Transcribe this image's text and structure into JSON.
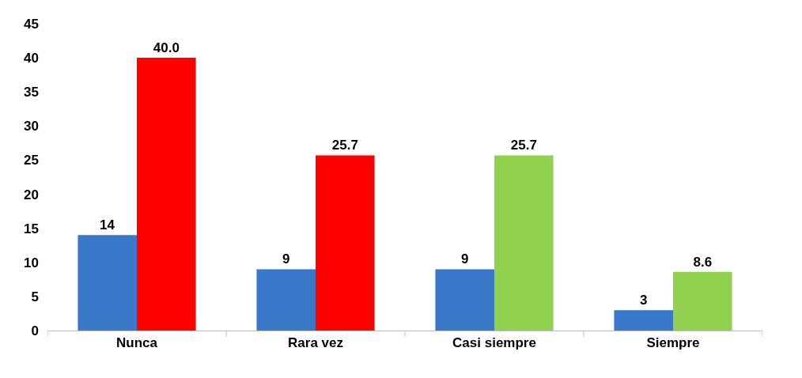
{
  "chart_data": {
    "type": "bar",
    "categories": [
      "Nunca",
      "Rara vez",
      "Casi siempre",
      "Siempre"
    ],
    "series": [
      {
        "color": "#3a78c9",
        "values": [
          14,
          9,
          9,
          3
        ],
        "value_labels": [
          "14",
          "9",
          "9",
          "3"
        ]
      },
      {
        "colors": [
          "#ff0000",
          "#ff0000",
          "#92d050",
          "#92d050"
        ],
        "values": [
          40.0,
          25.7,
          25.7,
          8.6
        ],
        "value_labels": [
          "40.0",
          "25.7",
          "25.7",
          "8.6"
        ]
      }
    ],
    "ylim": [
      0,
      45
    ],
    "yticks": [
      0,
      5,
      10,
      15,
      20,
      25,
      30,
      35,
      40,
      45
    ],
    "legend": false
  }
}
